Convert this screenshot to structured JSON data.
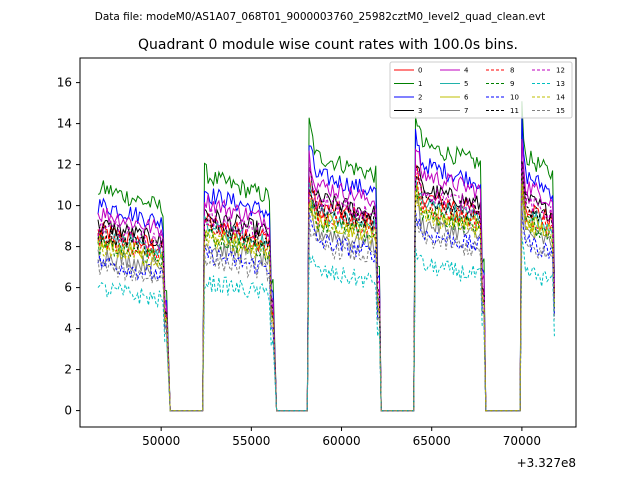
{
  "suptitle": "Data file: modeM0/AS1A07_068T01_9000003760_25982cztM0_level2_quad_clean.evt",
  "chart_data": {
    "type": "line",
    "title": "Quadrant 0 module wise count rates with 100.0s bins.",
    "xlabel": "",
    "ylabel": "",
    "x_offset_label": "+3.327e8",
    "xlim": [
      45500,
      73000
    ],
    "ylim": [
      -0.8,
      17.2
    ],
    "xticks": [
      50000,
      55000,
      60000,
      65000,
      70000
    ],
    "xtick_labels": [
      "50000",
      "55000",
      "60000",
      "65000",
      "70000"
    ],
    "yticks": [
      0,
      2,
      4,
      6,
      8,
      10,
      12,
      14,
      16
    ],
    "ytick_labels": [
      "0",
      "2",
      "4",
      "6",
      "8",
      "10",
      "12",
      "14",
      "16"
    ],
    "bin_width_s": 100,
    "segments": [
      [
        46500,
        50300
      ],
      [
        52400,
        56200
      ],
      [
        58200,
        62100
      ],
      [
        64100,
        67900
      ],
      [
        70000,
        71800
      ]
    ],
    "gaps": [
      [
        50500,
        52300
      ],
      [
        56400,
        58100
      ],
      [
        62200,
        64000
      ],
      [
        68000,
        69900
      ]
    ],
    "series": [
      {
        "name": "0",
        "color": "#ff0000",
        "dash": "solid",
        "base": 8.7
      },
      {
        "name": "1",
        "color": "#008000",
        "dash": "solid",
        "base": 10.8
      },
      {
        "name": "2",
        "color": "#0000ff",
        "dash": "solid",
        "base": 10.0
      },
      {
        "name": "3",
        "color": "#000000",
        "dash": "solid",
        "base": 9.0
      },
      {
        "name": "4",
        "color": "#bf00bf",
        "dash": "solid",
        "base": 9.6
      },
      {
        "name": "5",
        "color": "#20b2aa",
        "dash": "solid",
        "base": 8.4
      },
      {
        "name": "6",
        "color": "#bfbf00",
        "dash": "solid",
        "base": 8.1
      },
      {
        "name": "7",
        "color": "#808080",
        "dash": "solid",
        "base": 7.6
      },
      {
        "name": "8",
        "color": "#ff0000",
        "dash": "dashed",
        "base": 8.3
      },
      {
        "name": "9",
        "color": "#008000",
        "dash": "dashed",
        "base": 8.0
      },
      {
        "name": "10",
        "color": "#0000ff",
        "dash": "dashed",
        "base": 7.2
      },
      {
        "name": "11",
        "color": "#000000",
        "dash": "dashed",
        "base": 8.6
      },
      {
        "name": "12",
        "color": "#bf00bf",
        "dash": "dashed",
        "base": 8.9
      },
      {
        "name": "13",
        "color": "#00bfbf",
        "dash": "dashed",
        "base": 5.9
      },
      {
        "name": "14",
        "color": "#bfbf00",
        "dash": "dashed",
        "base": 7.9
      },
      {
        "name": "15",
        "color": "#808080",
        "dash": "dashed",
        "base": 7.0
      }
    ],
    "segment_scale": [
      1.0,
      1.05,
      1.15,
      1.2,
      1.15
    ],
    "segment_peak": [
      1.0,
      1.08,
      1.3,
      1.35,
      1.4
    ],
    "legend_loc": "upper right"
  }
}
